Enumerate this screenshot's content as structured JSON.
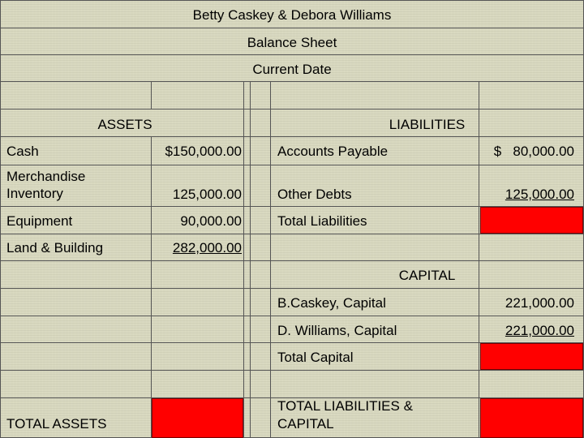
{
  "header": {
    "company": "Betty Caskey & Debora Williams",
    "title": "Balance Sheet",
    "date": "Current Date"
  },
  "assets": {
    "heading": "ASSETS",
    "rows": [
      {
        "label": "Cash",
        "value": "$150,000.00"
      },
      {
        "label": "Merchandise\nInventory",
        "value": "125,000.00"
      },
      {
        "label": "Equipment",
        "value": "90,000.00"
      },
      {
        "label": "Land & Building",
        "value": "282,000.00"
      }
    ],
    "total_label": "TOTAL ASSETS"
  },
  "liabilities": {
    "heading": "LIABILITIES",
    "rows": [
      {
        "label": "Accounts Payable",
        "value": "$   80,000.00"
      },
      {
        "label": "Other Debts",
        "value": "125,000.00"
      },
      {
        "label": "Total Liabilities",
        "value": ""
      }
    ]
  },
  "capital": {
    "heading": "CAPITAL",
    "rows": [
      {
        "label": "B.Caskey, Capital",
        "value": "221,000.00"
      },
      {
        "label": "D. Williams, Capital",
        "value": "221,000.00"
      },
      {
        "label": "Total Capital",
        "value": ""
      }
    ],
    "total_label": "TOTAL LIABILITIES &\nCAPITAL"
  },
  "colors": {
    "background": "#d8d8bf",
    "answer_box": "#ff0000",
    "grid": "#555555"
  }
}
